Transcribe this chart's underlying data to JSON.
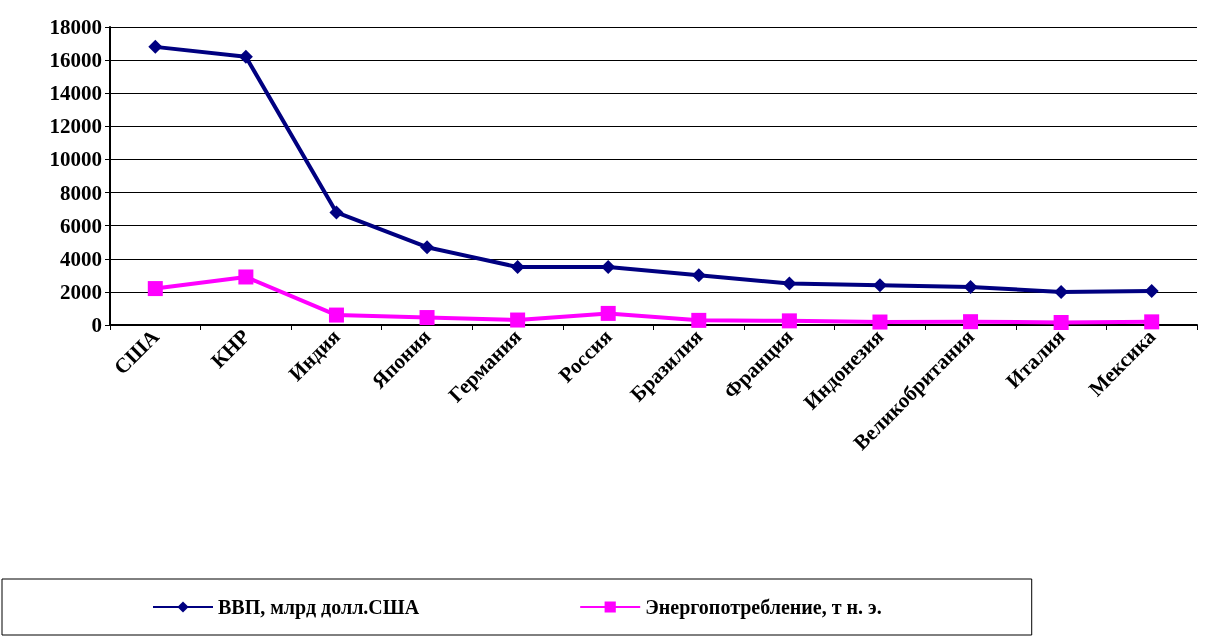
{
  "chart_data": {
    "type": "line",
    "categories": [
      "США",
      "КНР",
      "Индия",
      "Япония",
      "Германия",
      "Россия",
      "Бразилия",
      "Франция",
      "Индонезия",
      "Великобритания",
      "Италия",
      "Мексика"
    ],
    "series": [
      {
        "name": "ВВП, млрд долл.США",
        "color": "#000080",
        "marker": "diamond",
        "values": [
          16800,
          16200,
          6800,
          4700,
          3500,
          3500,
          3000,
          2500,
          2400,
          2300,
          2000,
          2050
        ]
      },
      {
        "name": "Энергопотребление, т н. э.",
        "color": "#ff00ff",
        "marker": "square",
        "values": [
          2200,
          2900,
          600,
          450,
          300,
          700,
          280,
          250,
          180,
          200,
          150,
          190
        ]
      }
    ],
    "ylim": [
      0,
      18000
    ],
    "yticks": [
      0,
      2000,
      4000,
      6000,
      8000,
      10000,
      12000,
      14000,
      16000,
      18000
    ],
    "grid": "y",
    "legend": "bottom",
    "line_style": "solid"
  }
}
